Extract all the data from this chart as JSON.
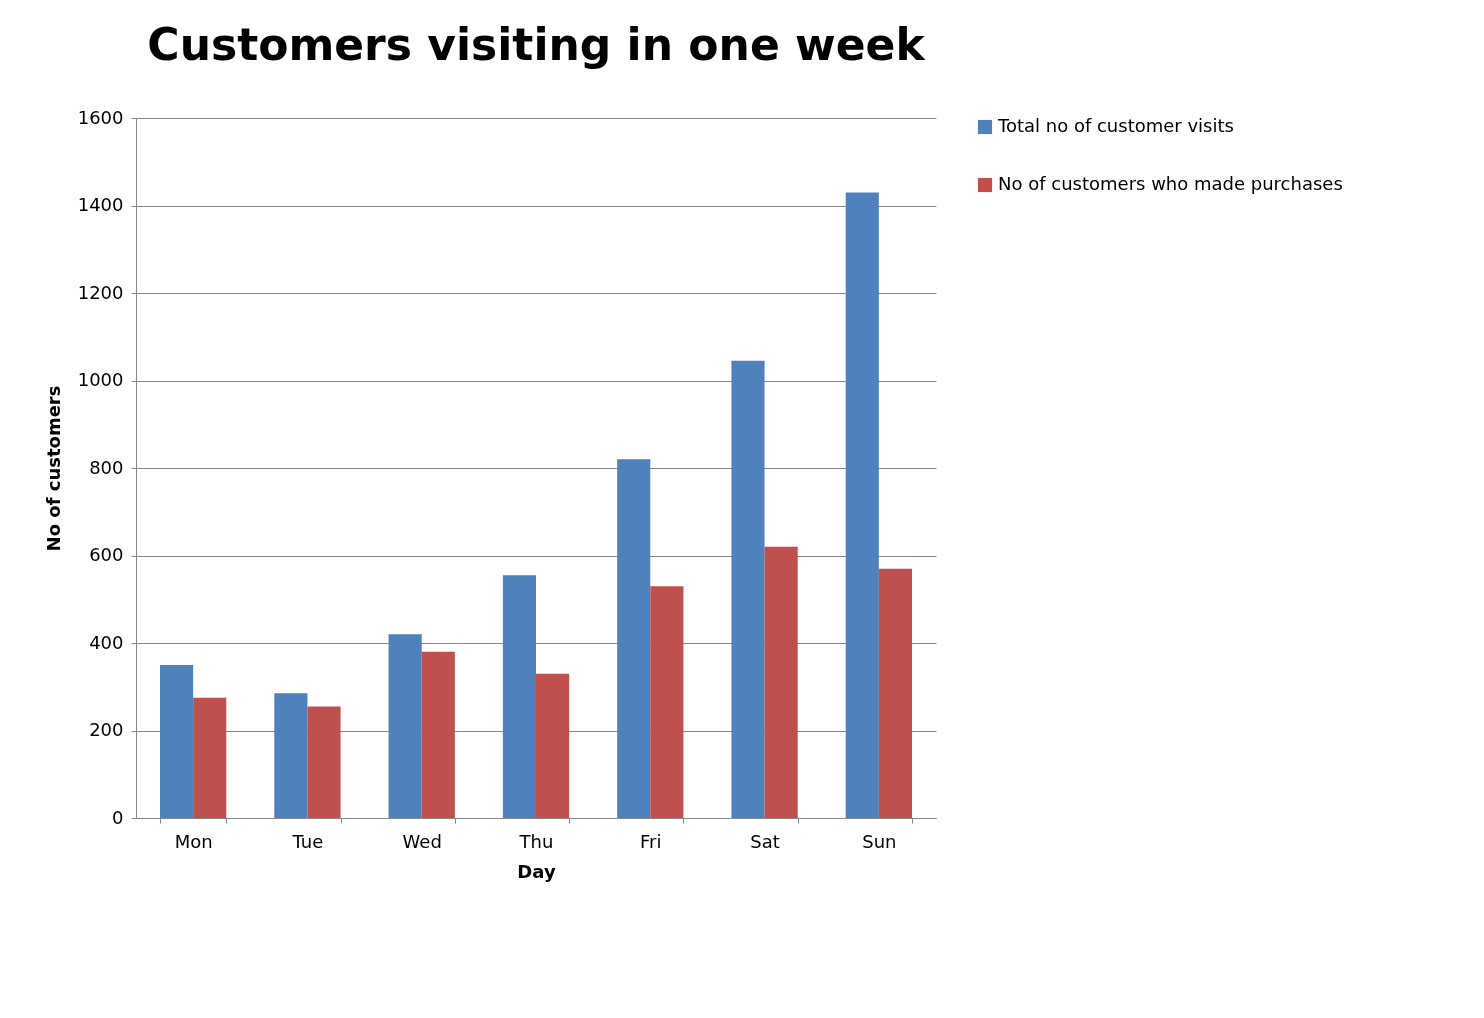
{
  "chart_data": {
    "type": "bar",
    "title": "Customers visiting in one week",
    "xlabel": "Day",
    "ylabel": "No of customers",
    "categories": [
      "Mon",
      "Tue",
      "Wed",
      "Thu",
      "Fri",
      "Sat",
      "Sun"
    ],
    "series": [
      {
        "name": "Total no of customer visits",
        "color": "#4f81bd",
        "values": [
          350,
          285,
          420,
          555,
          820,
          1045,
          1430
        ]
      },
      {
        "name": "No of customers who made purchases",
        "color": "#c0504d",
        "values": [
          275,
          255,
          380,
          330,
          530,
          620,
          570
        ]
      }
    ],
    "ylim": [
      0,
      1600
    ],
    "yticks": [
      0,
      200,
      400,
      600,
      800,
      1000,
      1200,
      1400,
      1600
    ],
    "grid": "y",
    "legend": "right"
  }
}
